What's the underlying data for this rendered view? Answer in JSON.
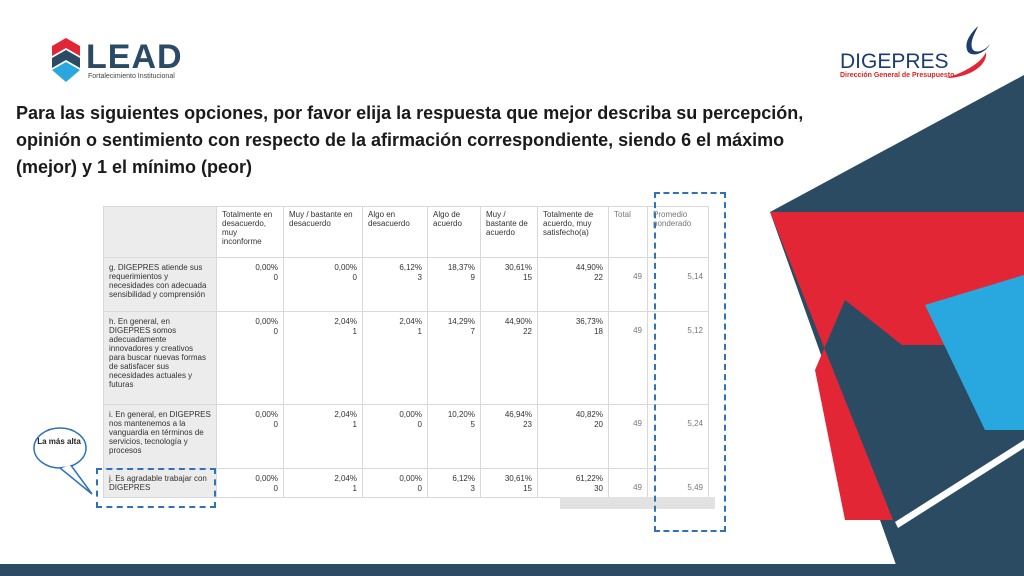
{
  "logos": {
    "lead_name": "LEAD",
    "lead_tagline": "Fortalecimiento Institucional",
    "digepres_name": "DIGEPRES",
    "digepres_subtitle": "Dirección General de Presupuesto"
  },
  "title": "Para las siguientes opciones, por favor elija la respuesta que  mejor  describa su percepción, opinión o sentimiento con respecto de la afirmación correspondiente,   siendo 6 el máximo (mejor) y 1 el mínimo (peor)",
  "table": {
    "headers": [
      "Totalmente en desacuerdo, muy inconforme",
      "Muy / bastante en desacuerdo",
      "Algo en desacuerdo",
      "Algo de acuerdo",
      "Muy / bastante de acuerdo",
      "Totalmente de acuerdo, muy satisfecho(a)",
      "Total",
      "Promedio ponderado"
    ],
    "rows": [
      {
        "question": "g. DIGEPRES atiende sus requerimientos y necesidades con adecuada sensibilidad y comprensión",
        "cells": [
          {
            "pct": "0,00%",
            "n": "0"
          },
          {
            "pct": "0,00%",
            "n": "0"
          },
          {
            "pct": "6,12%",
            "n": "3"
          },
          {
            "pct": "18,37%",
            "n": "9"
          },
          {
            "pct": "30,61%",
            "n": "15"
          },
          {
            "pct": "44,90%",
            "n": "22"
          }
        ],
        "total": "49",
        "avg": "5,14"
      },
      {
        "question": "h. En general, en DIGEPRES somos adecuadamente innovadores y creativos para buscar nuevas formas de satisfacer sus necesidades actuales y futuras",
        "cells": [
          {
            "pct": "0,00%",
            "n": "0"
          },
          {
            "pct": "2,04%",
            "n": "1"
          },
          {
            "pct": "2,04%",
            "n": "1"
          },
          {
            "pct": "14,29%",
            "n": "7"
          },
          {
            "pct": "44,90%",
            "n": "22"
          },
          {
            "pct": "36,73%",
            "n": "18"
          }
        ],
        "total": "49",
        "avg": "5,12"
      },
      {
        "question": "i. En general, en DIGEPRES nos mantenemos a la vanguardia en términos de servicios, tecnología y procesos",
        "cells": [
          {
            "pct": "0,00%",
            "n": "0"
          },
          {
            "pct": "2,04%",
            "n": "1"
          },
          {
            "pct": "0,00%",
            "n": "0"
          },
          {
            "pct": "10,20%",
            "n": "5"
          },
          {
            "pct": "46,94%",
            "n": "23"
          },
          {
            "pct": "40,82%",
            "n": "20"
          }
        ],
        "total": "49",
        "avg": "5,24"
      },
      {
        "question": "j. Es agradable trabajar con DIGEPRES",
        "cells": [
          {
            "pct": "0,00%",
            "n": "0"
          },
          {
            "pct": "2,04%",
            "n": "1"
          },
          {
            "pct": "0,00%",
            "n": "0"
          },
          {
            "pct": "6,12%",
            "n": "3"
          },
          {
            "pct": "30,61%",
            "n": "15"
          },
          {
            "pct": "61,22%",
            "n": "30"
          }
        ],
        "total": "49",
        "avg": "5,49"
      }
    ]
  },
  "callout": {
    "text": "La más alta"
  },
  "colors": {
    "navy": "#2b4b62",
    "red": "#e32636",
    "sky": "#29a8e0",
    "dash": "#2f73b6"
  }
}
